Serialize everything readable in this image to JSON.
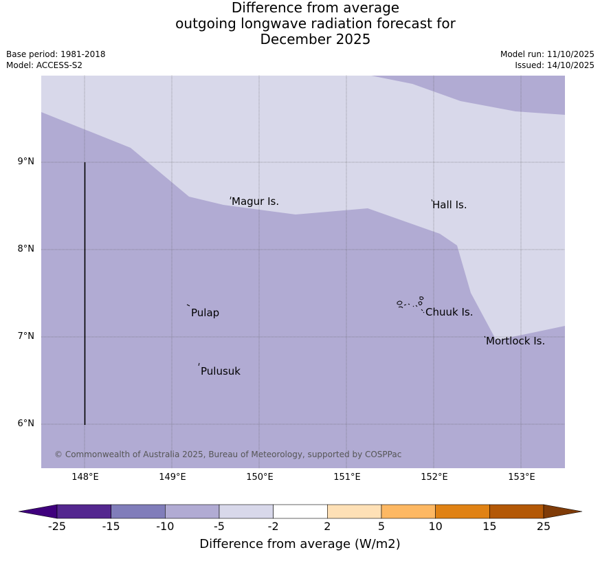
{
  "title": {
    "line1": "Difference from average",
    "line2": "outgoing longwave radiation forecast for",
    "line3": "December 2025"
  },
  "meta": {
    "base_period": "Base period: 1981-2018",
    "model": "Model: ACCESS-S2",
    "model_run": "Model run: 11/10/2025",
    "issued": "Issued: 14/10/2025"
  },
  "map": {
    "lon_ticks": [
      "148°E",
      "149°E",
      "150°E",
      "151°E",
      "152°E",
      "153°E"
    ],
    "lat_ticks": [
      "9°N",
      "8°N",
      "7°N",
      "6°N"
    ],
    "places": {
      "magur": "Magur Is.",
      "hall": "Hall Is.",
      "pulap": "Pulap",
      "chuuk": "Chuuk Is.",
      "mortlock": "Mortlock Is.",
      "pulusuk": "Pulusuk"
    },
    "copyright": "© Commonwealth of Australia 2025, Bureau of Meteorology, supported by COSPPac",
    "colors": {
      "band_minus5_minus2": "#d8d8ea",
      "band_minus10_minus5": "#b1abd3"
    }
  },
  "colorbar": {
    "title": "Difference from average (W/m2)",
    "labels": [
      "-25",
      "-15",
      "-10",
      "-5",
      "-2",
      "2",
      "5",
      "10",
      "15",
      "25"
    ],
    "colors": [
      "#3f007d",
      "#54278f",
      "#807dba",
      "#b1abd3",
      "#d8d8ea",
      "#ffffff",
      "#fee0b6",
      "#fdb863",
      "#e08214",
      "#b35806",
      "#7f3b08"
    ]
  }
}
